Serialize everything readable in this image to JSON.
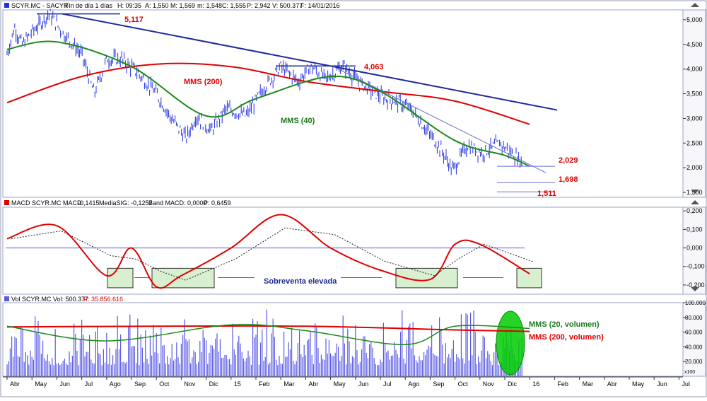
{
  "price_panel": {
    "header": {
      "symbol": "SCYR.MC - SACYR",
      "period": "Fin de día 1 días",
      "hour": "H: 09:35",
      "open": "A: 1,550",
      "high": "M: 1,569",
      "low": "m: 1,548",
      "close": "C: 1,555",
      "change": "P: 2,942",
      "volume": "V: 500.377",
      "date": "F: 14/01/2016"
    },
    "y_ticks": [
      "5,000",
      "4,500",
      "4,000",
      "3,500",
      "3,000",
      "2,500",
      "2,000",
      "1,500"
    ],
    "annotations": {
      "high_peak": "5,117",
      "mid_peak": "4,063",
      "mms200": "MMS (200)",
      "mms40": "MMS (40)",
      "res1": "2,029",
      "res2": "1,698",
      "low": "1,511"
    }
  },
  "macd_panel": {
    "header": {
      "title": "MACD  SCYR.MC MACD",
      "macd_value": "-0,1415",
      "signal": "MediaSIG: -0,1257",
      "band": "Band  MACD: 0,0000",
      "p": "P: 0,6459"
    },
    "y_ticks": [
      "0,200",
      "0,100",
      "0,000",
      "-0,100",
      "-0,200"
    ],
    "annotation": "Sobreventa elevada"
  },
  "volume_panel": {
    "header": {
      "title": "Vol  SCYR.MC Vol: 500.377",
      "p": "P: 35.856.616"
    },
    "y_ticks": [
      "100.000",
      "80.000",
      "60.000",
      "40.000",
      "20.000"
    ],
    "unit": "x100",
    "annotations": {
      "mms20": "MMS (20, volumen)",
      "mms200": "MMS (200, volumen)"
    }
  },
  "x_axis": {
    "labels": [
      "Abr",
      "May",
      "Jun",
      "Jul",
      "Ago",
      "Sep",
      "Oct",
      "Nov",
      "Dic",
      "15",
      "Feb",
      "Mar",
      "Abr",
      "May",
      "Jun",
      "Jul",
      "Ago",
      "Sep",
      "Oct",
      "Nov",
      "Dic",
      "16",
      "Feb",
      "Mar",
      "Abr",
      "May",
      "Jun",
      "Jul"
    ]
  },
  "colors": {
    "price": "#2030e0",
    "mms200": "#e00000",
    "mms40": "#1a8a1a",
    "trend": "#1e2a9a",
    "macd": "#e00000",
    "signal": "#202020",
    "oversold_box": "#d8f0d0",
    "volume_bar": "#5a5ae6",
    "volume_highlight": "#00cc00"
  },
  "chart_data": [
    {
      "type": "line",
      "title": "",
      "series": [
        {
          "name": "MMS (200)",
          "x": [
            "2014-04",
            "2014-07",
            "2014-10",
            "2015-01",
            "2015-04",
            "2015-07",
            "2015-10",
            "2016-01"
          ],
          "values": [
            3.32,
            3.85,
            4.1,
            4.05,
            3.75,
            3.55,
            3.35,
            2.88
          ]
        },
        {
          "name": "MMS (40)",
          "x": [
            "2014-04",
            "2014-06",
            "2014-09",
            "2014-12",
            "2015-02",
            "2015-05",
            "2015-07",
            "2015-10",
            "2015-12",
            "2016-01"
          ],
          "values": [
            4.4,
            4.55,
            4.05,
            3.05,
            3.4,
            3.85,
            3.55,
            2.55,
            2.25,
            2.03
          ]
        }
      ],
      "ylim": [
        1.4,
        5.2
      ]
    },
    {
      "type": "line",
      "title": "",
      "series": [
        {
          "name": "MACD",
          "x": [
            "2014-04",
            "2014-06",
            "2014-08",
            "2014-09",
            "2014-10",
            "2014-11",
            "2015-01",
            "2015-03",
            "2015-05",
            "2015-07",
            "2015-09",
            "2015-10",
            "2015-11",
            "2016-01"
          ],
          "values": [
            0.05,
            0.12,
            -0.15,
            0.0,
            -0.21,
            -0.15,
            0.0,
            0.18,
            0.0,
            -0.12,
            -0.17,
            0.02,
            0.02,
            -0.14
          ]
        }
      ],
      "ylim": [
        -0.25,
        0.22
      ]
    },
    {
      "type": "bar",
      "title": "",
      "series": [
        {
          "name": "MMS (20, volumen)",
          "x": [
            "2014-04",
            "2014-08",
            "2015-01",
            "2015-04",
            "2015-08",
            "2015-10",
            "2016-01"
          ],
          "values": [
            68000,
            48000,
            70000,
            62000,
            43000,
            68000,
            65000
          ]
        },
        {
          "name": "MMS (200, volumen)",
          "x": [
            "2014-04",
            "2014-10",
            "2015-04",
            "2015-10",
            "2016-01"
          ],
          "values": [
            67000,
            68000,
            68000,
            63000,
            61000
          ]
        }
      ],
      "ylim": [
        0,
        100000
      ]
    }
  ]
}
